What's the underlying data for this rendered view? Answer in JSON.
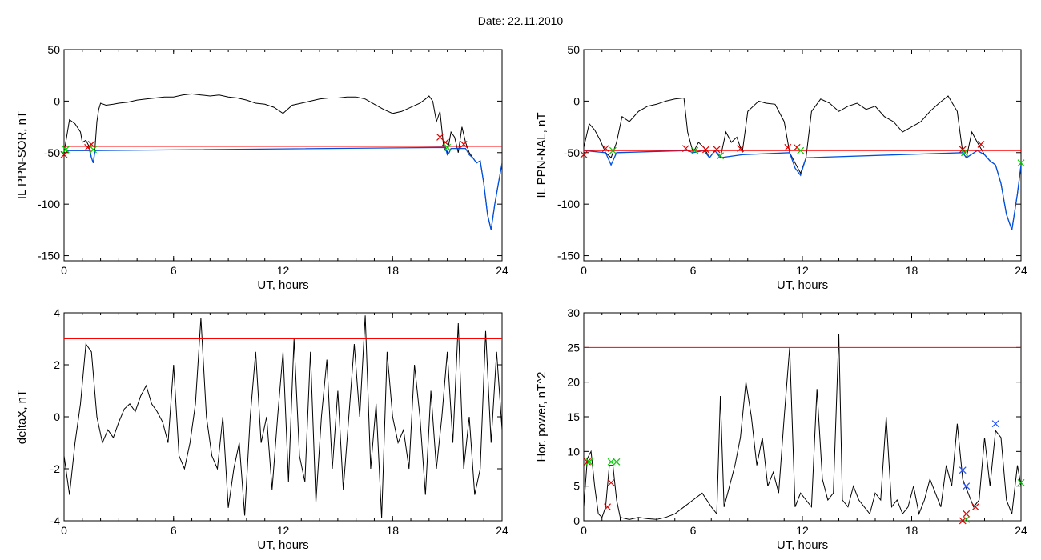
{
  "header": {
    "title": "Date:  22.11.2010"
  },
  "colors": {
    "axis": "#000000",
    "trace": "#000000",
    "threshold": "#ff0000",
    "segment": "#0050e0",
    "marker_red": "#e00000",
    "marker_green": "#00cc00",
    "marker_blue": "#2050ff"
  },
  "chart_data": [
    {
      "type": "line",
      "title": "",
      "xlabel": "UT, hours",
      "ylabel": "IL PPN-SOR, nT",
      "xlim": [
        0,
        24
      ],
      "ylim": [
        -155,
        50
      ],
      "xticks": [
        0,
        6,
        12,
        18,
        24
      ],
      "yticks": [
        50,
        0,
        -50,
        -100,
        -150
      ],
      "threshold": -44,
      "series": [
        {
          "values_x": [
            0,
            0.3,
            0.6,
            0.9,
            1.0,
            1.2,
            1.4,
            1.5,
            1.6,
            1.7,
            1.8,
            1.9,
            2.0,
            2.3,
            2.7,
            3,
            3.5,
            4,
            4.5,
            5,
            5.5,
            6,
            6.5,
            7,
            7.5,
            8,
            8.5,
            9,
            9.5,
            10,
            10.5,
            11,
            11.5,
            12,
            12.5,
            13,
            13.5,
            14,
            14.5,
            15,
            15.5,
            16,
            16.5,
            17,
            17.5,
            18,
            18.5,
            19,
            19.5,
            19.8,
            20,
            20.2,
            20.4,
            20.6,
            20.8,
            21.0,
            21.2,
            21.4,
            21.6,
            21.8,
            22.0,
            22.2,
            22.4,
            22.6,
            22.8,
            23.0,
            23.2,
            23.4,
            23.6,
            23.8,
            24
          ],
          "values_y": [
            -50,
            -18,
            -22,
            -30,
            -40,
            -38,
            -45,
            -55,
            -60,
            -45,
            -20,
            -8,
            -2,
            -4,
            -3,
            -2,
            -1,
            1,
            2,
            3,
            4,
            4,
            6,
            7,
            6,
            5,
            6,
            4,
            3,
            1,
            -2,
            -3,
            -6,
            -12,
            -4,
            -2,
            0,
            2,
            3,
            3,
            4,
            4,
            2,
            -3,
            -8,
            -12,
            -10,
            -6,
            -2,
            2,
            5,
            0,
            -20,
            -10,
            -45,
            -50,
            -30,
            -35,
            -50,
            -25,
            -40,
            -50,
            -55,
            -60,
            -58,
            -80,
            -110,
            -125,
            -100,
            -80,
            -60
          ]
        }
      ],
      "segment_series": {
        "values_x": [
          0,
          0.2,
          1.4,
          1.5,
          1.6,
          1.7,
          20.9,
          21.0,
          21.1,
          21.2,
          22.0,
          22.2,
          22.4,
          22.6,
          22.8,
          23.0,
          23.2,
          23.4,
          23.6,
          23.8,
          24
        ],
        "values_y": [
          -46,
          -48,
          -48,
          -55,
          -60,
          -48,
          -45,
          -52,
          -50,
          -46,
          -46,
          -52,
          -55,
          -60,
          -58,
          -80,
          -110,
          -125,
          -100,
          -80,
          -60
        ]
      },
      "markers_red": [
        [
          0,
          -52
        ],
        [
          1.3,
          -45
        ],
        [
          1.5,
          -42
        ],
        [
          20.6,
          -35
        ],
        [
          20.9,
          -40
        ],
        [
          21.9,
          -42
        ]
      ],
      "markers_green": [
        [
          0.1,
          -47
        ],
        [
          1.6,
          -47
        ],
        [
          21.0,
          -45
        ]
      ]
    },
    {
      "type": "line",
      "title": "",
      "xlabel": "UT, hours",
      "ylabel": "IL PPN-NAL, nT",
      "xlim": [
        0,
        24
      ],
      "ylim": [
        -155,
        50
      ],
      "xticks": [
        0,
        6,
        12,
        18,
        24
      ],
      "yticks": [
        50,
        0,
        -50,
        -100,
        -150
      ],
      "threshold": -48,
      "series": [
        {
          "values_x": [
            0,
            0.3,
            0.6,
            0.9,
            1.2,
            1.5,
            1.8,
            2.1,
            2.5,
            3,
            3.5,
            4,
            4.5,
            5,
            5.5,
            5.7,
            6,
            6.3,
            6.6,
            6.9,
            7.2,
            7.5,
            7.8,
            8.1,
            8.4,
            8.7,
            9,
            9.3,
            9.6,
            10,
            10.5,
            11,
            11.3,
            11.6,
            11.9,
            12.2,
            12.5,
            13,
            13.5,
            14,
            14.5,
            15,
            15.5,
            16,
            16.5,
            17,
            17.5,
            18,
            18.5,
            19,
            19.5,
            20,
            20.5,
            20.8,
            21,
            21.3,
            21.6,
            22,
            22.3,
            22.6,
            22.9,
            23.2,
            23.5,
            23.8,
            24
          ],
          "values_y": [
            -45,
            -22,
            -28,
            -38,
            -50,
            -55,
            -40,
            -15,
            -20,
            -10,
            -5,
            -3,
            0,
            2,
            3,
            -30,
            -50,
            -40,
            -45,
            -55,
            -48,
            -55,
            -30,
            -40,
            -35,
            -50,
            -10,
            -5,
            0,
            -2,
            -3,
            -20,
            -50,
            -60,
            -70,
            -55,
            -10,
            2,
            -2,
            -10,
            -5,
            -2,
            -8,
            -5,
            -15,
            -20,
            -30,
            -25,
            -20,
            -10,
            -2,
            5,
            -10,
            -50,
            -55,
            -30,
            -40,
            -52,
            -58,
            -62,
            -80,
            -110,
            -125,
            -90,
            -62
          ]
        }
      ],
      "segment_series": {
        "values_x": [
          0,
          1.2,
          1.5,
          1.8,
          5.7,
          6,
          6.6,
          6.9,
          7.2,
          7.5,
          8.7,
          11.3,
          11.6,
          11.9,
          12.2,
          20.8,
          21,
          21.6,
          22,
          22.3,
          22.6,
          22.9,
          23.2,
          23.5,
          23.8,
          24
        ],
        "values_y": [
          -48,
          -50,
          -62,
          -50,
          -48,
          -50,
          -48,
          -55,
          -48,
          -55,
          -52,
          -50,
          -65,
          -72,
          -55,
          -50,
          -55,
          -48,
          -52,
          -58,
          -62,
          -80,
          -110,
          -125,
          -90,
          -62
        ]
      },
      "markers_red": [
        [
          0,
          -52
        ],
        [
          1.2,
          -46
        ],
        [
          5.6,
          -46
        ],
        [
          6.7,
          -47
        ],
        [
          7.3,
          -47
        ],
        [
          8.6,
          -46
        ],
        [
          11.2,
          -45
        ],
        [
          11.7,
          -45
        ],
        [
          20.8,
          -47
        ],
        [
          21.8,
          -42
        ]
      ],
      "markers_green": [
        [
          1.6,
          -48
        ],
        [
          6.1,
          -48
        ],
        [
          7.5,
          -53
        ],
        [
          11.9,
          -48
        ],
        [
          20.9,
          -50
        ],
        [
          24,
          -60
        ]
      ]
    },
    {
      "type": "line",
      "title": "",
      "xlabel": "UT, hours",
      "ylabel": "deltaX, nT",
      "xlim": [
        0,
        24
      ],
      "ylim": [
        -4,
        4
      ],
      "xticks": [
        0,
        6,
        12,
        18,
        24
      ],
      "yticks": [
        4,
        2,
        0,
        -2,
        -4
      ],
      "threshold": 3,
      "series": [
        {
          "values_x": [
            0,
            0.3,
            0.6,
            0.9,
            1.2,
            1.5,
            1.8,
            2.1,
            2.4,
            2.7,
            3,
            3.3,
            3.6,
            3.9,
            4.2,
            4.5,
            4.8,
            5.1,
            5.4,
            5.7,
            6,
            6.3,
            6.6,
            6.9,
            7.2,
            7.5,
            7.8,
            8.1,
            8.4,
            8.7,
            9,
            9.3,
            9.6,
            9.9,
            10.2,
            10.5,
            10.8,
            11.1,
            11.4,
            11.7,
            12,
            12.3,
            12.6,
            12.9,
            13.2,
            13.5,
            13.8,
            14.1,
            14.4,
            14.7,
            15,
            15.3,
            15.6,
            15.9,
            16.2,
            16.5,
            16.8,
            17.1,
            17.4,
            17.7,
            18,
            18.3,
            18.6,
            18.9,
            19.2,
            19.5,
            19.8,
            20.1,
            20.4,
            20.7,
            21,
            21.3,
            21.6,
            21.9,
            22.2,
            22.5,
            22.8,
            23.1,
            23.4,
            23.7,
            24
          ],
          "values_y": [
            -1.5,
            -3,
            -1,
            0.5,
            2.8,
            2.5,
            0,
            -1,
            -0.5,
            -0.8,
            -0.2,
            0.3,
            0.5,
            0.2,
            0.8,
            1.2,
            0.5,
            0.2,
            -0.2,
            -1,
            2,
            -1.5,
            -2,
            -1,
            0.5,
            3.8,
            0,
            -1.5,
            -2,
            0,
            -3.5,
            -2,
            -1,
            -3.8,
            0,
            2.5,
            -1,
            0,
            -2.8,
            0,
            2.5,
            -2.5,
            3,
            -1.5,
            -2.5,
            2.5,
            -3.3,
            0,
            2.2,
            -2,
            1,
            -2.8,
            0,
            2.8,
            0,
            3.9,
            -2,
            0.5,
            -3.9,
            2.5,
            0,
            -1,
            -0.5,
            -2,
            2,
            0,
            -3,
            1,
            -2,
            0,
            2.5,
            -1,
            3.6,
            -2,
            0,
            -3,
            -2,
            3.3,
            -1,
            2.5,
            -0.5
          ]
        }
      ],
      "markers_red": [],
      "markers_green": []
    },
    {
      "type": "line",
      "title": "",
      "xlabel": "UT, hours",
      "ylabel": "Hor. power, nT^2",
      "xlim": [
        0,
        24
      ],
      "ylim": [
        0,
        30
      ],
      "xticks": [
        0,
        6,
        12,
        18,
        24
      ],
      "yticks": [
        30,
        25,
        20,
        15,
        10,
        5,
        0
      ],
      "threshold": 25,
      "series": [
        {
          "values_x": [
            0,
            0.2,
            0.4,
            0.6,
            0.8,
            1.0,
            1.2,
            1.4,
            1.6,
            1.8,
            2.0,
            2.5,
            3,
            3.5,
            4,
            4.5,
            5,
            5.5,
            6,
            6.5,
            7,
            7.3,
            7.5,
            7.7,
            8,
            8.3,
            8.6,
            8.9,
            9.2,
            9.5,
            9.8,
            10.1,
            10.4,
            10.7,
            11,
            11.3,
            11.6,
            11.9,
            12.2,
            12.5,
            12.8,
            13.1,
            13.4,
            13.7,
            14,
            14.2,
            14.5,
            14.8,
            15.1,
            15.4,
            15.7,
            16,
            16.3,
            16.6,
            16.9,
            17.2,
            17.5,
            17.8,
            18.1,
            18.4,
            18.7,
            19,
            19.3,
            19.6,
            19.9,
            20.2,
            20.5,
            20.8,
            21.1,
            21.4,
            21.7,
            22,
            22.3,
            22.6,
            22.9,
            23.2,
            23.5,
            23.8,
            24
          ],
          "values_y": [
            2,
            9,
            10,
            5,
            1,
            0.5,
            2,
            8,
            8,
            3,
            0.5,
            0.2,
            0.5,
            0.3,
            0.2,
            0.5,
            1,
            2,
            3,
            4,
            2,
            1,
            18,
            2,
            5,
            8,
            12,
            20,
            15,
            8,
            12,
            5,
            7,
            4,
            15,
            25,
            2,
            4,
            3,
            2,
            19,
            6,
            3,
            4,
            27,
            3,
            2,
            5,
            3,
            2,
            1,
            4,
            3,
            15,
            2,
            3,
            1,
            2,
            5,
            1,
            3,
            6,
            4,
            2,
            8,
            5,
            14,
            6,
            4,
            2,
            3,
            12,
            5,
            13,
            12,
            3,
            1,
            8,
            5
          ]
        }
      ],
      "markers_red": [
        [
          0.2,
          8.5
        ],
        [
          1.3,
          2
        ],
        [
          1.5,
          5.5
        ],
        [
          20.8,
          0
        ],
        [
          21.0,
          1
        ],
        [
          21.5,
          2
        ]
      ],
      "markers_green": [
        [
          0.3,
          8.5
        ],
        [
          1.5,
          8.5
        ],
        [
          1.8,
          8.5
        ],
        [
          21.0,
          0.2
        ],
        [
          24,
          5.5
        ]
      ],
      "markers_blue": [
        [
          20.8,
          7.3
        ],
        [
          21.0,
          5
        ],
        [
          22.6,
          14
        ]
      ]
    }
  ]
}
